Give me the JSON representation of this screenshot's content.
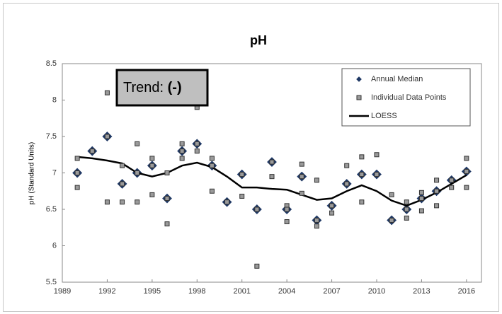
{
  "chart_data": {
    "type": "scatter",
    "title": "pH",
    "y_label": "pH (Standard Units)",
    "annotation": {
      "label": "Trend:",
      "value": "(-)"
    },
    "xlim": [
      1989,
      2017
    ],
    "xticks": [
      1989,
      1992,
      1995,
      1998,
      2001,
      2004,
      2007,
      2010,
      2013,
      2016
    ],
    "ylim": [
      5.5,
      8.5
    ],
    "yticks": [
      5.5,
      6,
      6.5,
      7,
      7.5,
      8,
      8.5
    ],
    "grid": false,
    "legend": "upper right",
    "series": [
      {
        "name": "Annual Median",
        "marker": "diamond",
        "color": "#1f3864",
        "x": [
          1990,
          1991,
          1992,
          1993,
          1994,
          1995,
          1996,
          1997,
          1998,
          1999,
          2000,
          2001,
          2002,
          2003,
          2004,
          2005,
          2006,
          2007,
          2008,
          2009,
          2010,
          2011,
          2012,
          2013,
          2014,
          2015,
          2016
        ],
        "values": [
          7.0,
          7.3,
          7.5,
          6.85,
          7.0,
          7.1,
          6.65,
          7.3,
          7.4,
          7.1,
          6.6,
          6.98,
          6.5,
          7.15,
          6.5,
          6.95,
          6.35,
          6.55,
          6.85,
          6.98,
          6.98,
          6.35,
          6.5,
          6.65,
          6.75,
          6.9,
          7.02
        ]
      },
      {
        "name": "Individual Data Points",
        "marker": "square",
        "color": "#9a9a9a",
        "x": [
          1990,
          1990,
          1990,
          1991,
          1992,
          1992,
          1992,
          1993,
          1993,
          1993,
          1994,
          1994,
          1994,
          1995,
          1995,
          1995,
          1996,
          1996,
          1996,
          1997,
          1997,
          1997,
          1998,
          1998,
          1998,
          1999,
          1999,
          1999,
          2000,
          2001,
          2001,
          2002,
          2002,
          2003,
          2003,
          2004,
          2004,
          2004,
          2005,
          2005,
          2005,
          2006,
          2006,
          2006,
          2007,
          2007,
          2008,
          2008,
          2009,
          2009,
          2009,
          2010,
          2010,
          2011,
          2011,
          2012,
          2012,
          2012,
          2013,
          2013,
          2013,
          2014,
          2014,
          2014,
          2015,
          2015,
          2016,
          2016,
          2016
        ],
        "values": [
          7.2,
          7.0,
          6.8,
          7.3,
          8.1,
          7.5,
          6.6,
          7.1,
          6.85,
          6.6,
          7.4,
          7.0,
          6.6,
          7.2,
          7.1,
          6.7,
          7.0,
          6.65,
          6.3,
          7.4,
          7.3,
          7.2,
          7.9,
          7.4,
          7.3,
          7.2,
          7.1,
          6.75,
          6.6,
          6.98,
          6.68,
          6.5,
          5.72,
          7.15,
          6.95,
          6.55,
          6.5,
          6.33,
          7.12,
          6.95,
          6.72,
          6.9,
          6.35,
          6.27,
          6.55,
          6.45,
          7.1,
          6.85,
          7.22,
          6.98,
          6.6,
          7.25,
          6.98,
          6.7,
          6.35,
          6.6,
          6.5,
          6.38,
          6.73,
          6.65,
          6.48,
          6.9,
          6.75,
          6.55,
          6.9,
          6.8,
          7.2,
          7.02,
          6.8
        ]
      },
      {
        "name": "LOESS",
        "marker": "line",
        "color": "#000000",
        "x": [
          1990,
          1991,
          1992,
          1993,
          1994,
          1995,
          1996,
          1997,
          1998,
          1999,
          2000,
          2001,
          2002,
          2003,
          2004,
          2005,
          2006,
          2007,
          2008,
          2009,
          2010,
          2011,
          2012,
          2013,
          2014,
          2015,
          2016
        ],
        "values": [
          7.22,
          7.2,
          7.17,
          7.13,
          7.0,
          6.95,
          7.0,
          7.1,
          7.14,
          7.08,
          6.95,
          6.8,
          6.8,
          6.78,
          6.77,
          6.7,
          6.63,
          6.65,
          6.75,
          6.83,
          6.75,
          6.62,
          6.55,
          6.63,
          6.73,
          6.85,
          6.97
        ]
      }
    ]
  }
}
